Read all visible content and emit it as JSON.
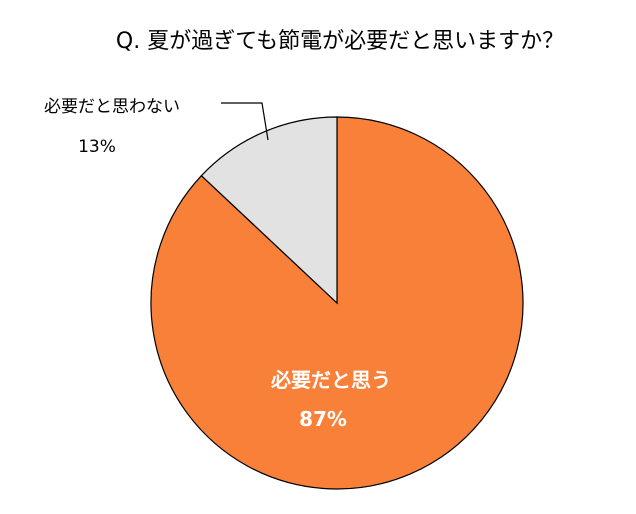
{
  "chart_data": {
    "type": "pie",
    "title": "Q. 夏が過ぎても節電が必要だと思いますか？",
    "slices": [
      {
        "label": "必要だと思う",
        "value": 87,
        "value_label": "87%",
        "color": "#F98039"
      },
      {
        "label": "必要だと思わない",
        "value": 13,
        "value_label": "13%",
        "color": "#E2E2E2"
      }
    ],
    "start_angle_deg": 0,
    "direction": "clockwise",
    "legend": "none"
  }
}
